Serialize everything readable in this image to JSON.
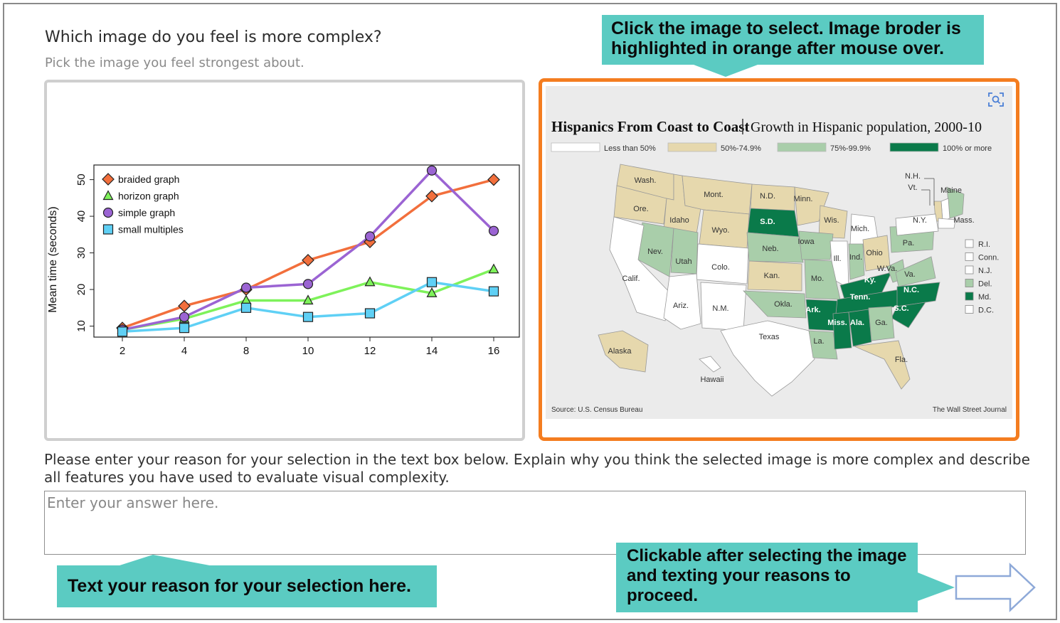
{
  "question": {
    "title": "Which image do you feel is more complex?",
    "subtitle": "Pick the image you feel strongest about."
  },
  "left_image": {
    "chart_data": {
      "type": "line",
      "x": [
        2,
        4,
        8,
        10,
        12,
        14,
        16
      ],
      "xlabel": "",
      "ylabel": "Mean time (seconds)",
      "yticks": [
        10,
        20,
        30,
        40,
        50
      ],
      "ylim": [
        7,
        54
      ],
      "grid": false,
      "legend": "top-left",
      "series": [
        {
          "name": "braided graph",
          "marker": "diamond",
          "color": "#f26f3c",
          "values": [
            9.5,
            15.5,
            20,
            28,
            33,
            45.5,
            50
          ]
        },
        {
          "name": "horizon graph",
          "marker": "triangle",
          "color": "#7ef25a",
          "values": [
            9,
            12,
            17,
            17,
            22,
            19,
            25.5
          ]
        },
        {
          "name": "simple graph",
          "marker": "circle",
          "color": "#9b64d3",
          "values": [
            9,
            12.5,
            20.5,
            21.5,
            34.5,
            52.5,
            36
          ]
        },
        {
          "name": "small multiples",
          "marker": "square",
          "color": "#5fd0f5",
          "values": [
            8.5,
            9.5,
            15,
            12.5,
            13.5,
            22,
            19.5
          ]
        }
      ]
    }
  },
  "right_image": {
    "title": "Hispanics From Coast to Coast",
    "subtitle": "Growth in Hispanic population, 2000-10",
    "legend": [
      {
        "label": "Less than 50%",
        "color": "#ffffff"
      },
      {
        "label": "50%-74.9%",
        "color": "#e6d8ad"
      },
      {
        "label": "75%-99.9%",
        "color": "#a9ceaa"
      },
      {
        "label": "100% or more",
        "color": "#0a7a4a"
      }
    ],
    "states": [
      {
        "label": "Wash.",
        "bin": 1
      },
      {
        "label": "Ore.",
        "bin": 1
      },
      {
        "label": "Idaho",
        "bin": 1
      },
      {
        "label": "Mont.",
        "bin": 1
      },
      {
        "label": "Wyo.",
        "bin": 1
      },
      {
        "label": "N.D.",
        "bin": 1
      },
      {
        "label": "S.D.",
        "bin": 3
      },
      {
        "label": "Minn.",
        "bin": 1
      },
      {
        "label": "Wis.",
        "bin": 1
      },
      {
        "label": "Mich.",
        "bin": 0
      },
      {
        "label": "Nev.",
        "bin": 2
      },
      {
        "label": "Utah",
        "bin": 2
      },
      {
        "label": "Colo.",
        "bin": 0
      },
      {
        "label": "Neb.",
        "bin": 2
      },
      {
        "label": "Iowa",
        "bin": 2
      },
      {
        "label": "Ill.",
        "bin": 0
      },
      {
        "label": "Ind.",
        "bin": 2
      },
      {
        "label": "Ohio",
        "bin": 1
      },
      {
        "label": "Pa.",
        "bin": 2
      },
      {
        "label": "Calif.",
        "bin": 0
      },
      {
        "label": "Ariz.",
        "bin": 0
      },
      {
        "label": "N.M.",
        "bin": 0
      },
      {
        "label": "Kan.",
        "bin": 1
      },
      {
        "label": "Mo.",
        "bin": 2
      },
      {
        "label": "Ky.",
        "bin": 3
      },
      {
        "label": "W.Va.",
        "bin": 2
      },
      {
        "label": "Va.",
        "bin": 2
      },
      {
        "label": "Okla.",
        "bin": 2
      },
      {
        "label": "Ark.",
        "bin": 3
      },
      {
        "label": "Tenn.",
        "bin": 3
      },
      {
        "label": "N.C.",
        "bin": 3
      },
      {
        "label": "S.C.",
        "bin": 3
      },
      {
        "label": "Texas",
        "bin": 0
      },
      {
        "label": "La.",
        "bin": 2
      },
      {
        "label": "Miss.",
        "bin": 3
      },
      {
        "label": "Ala.",
        "bin": 3
      },
      {
        "label": "Ga.",
        "bin": 2
      },
      {
        "label": "Fla.",
        "bin": 1
      },
      {
        "label": "Alaska",
        "bin": 1
      },
      {
        "label": "Hawaii",
        "bin": 0
      },
      {
        "label": "Maine",
        "bin": 2
      },
      {
        "label": "N.H.",
        "bin": 0
      },
      {
        "label": "Vt.",
        "bin": 1
      },
      {
        "label": "N.Y.",
        "bin": 0
      },
      {
        "label": "Mass.",
        "bin": 0
      }
    ],
    "small_states": [
      {
        "label": "R.I.",
        "bin": 0
      },
      {
        "label": "Conn.",
        "bin": 0
      },
      {
        "label": "N.J.",
        "bin": 0
      },
      {
        "label": "Del.",
        "bin": 2
      },
      {
        "label": "Md.",
        "bin": 3
      },
      {
        "label": "D.C.",
        "bin": 0
      }
    ],
    "source": "Source: U.S. Census Bureau",
    "credit": "The Wall Street Journal",
    "scan_icon": "visual-search-icon"
  },
  "reason": {
    "prompt": "Please enter your reason for your selection in the text box below. Explain why you think the selected image is more complex and describe all features you have used to evaluate visual complexity.",
    "placeholder": "Enter your answer here."
  },
  "callouts": {
    "select_hint": "Click the image to select. Image broder is highlighted in orange after mouse over.",
    "text_hint": "Text your reason for your selection here.",
    "next_hint": "Clickable after selecting the image and texting your reasons to proceed."
  },
  "next_button": {
    "icon": "right-arrow-icon"
  }
}
